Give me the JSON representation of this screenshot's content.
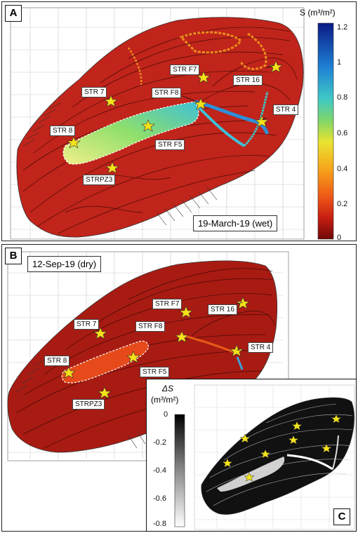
{
  "panels": {
    "A": {
      "tag": "A",
      "date": "19-March-19 (wet)",
      "colorbar": {
        "title": "S (m³/m²)",
        "ticks": [
          "1.2",
          "1",
          "0.8",
          "0.6",
          "0.4",
          "0.2",
          "0"
        ]
      }
    },
    "B": {
      "tag": "B",
      "date": "12-Sep-19 (dry)"
    },
    "C": {
      "tag": "C",
      "colorbar": {
        "title_line1": "ΔS",
        "title_line2": "(m³/m²)",
        "ticks": [
          "0",
          "-0.2",
          "-0.4",
          "-0.6",
          "-0.8"
        ]
      }
    }
  },
  "stations": {
    "str7": "STR 7",
    "strf7": "STR F7",
    "str16": "STR 16",
    "strf8": "STR F8",
    "str4": "STR 4",
    "str8": "STR 8",
    "strf5": "STR F5",
    "strpz3": "STRPZ3"
  },
  "colors": {
    "map_red": "#c0241a",
    "cb_top": "#0a1f8a",
    "cb_bottom": "#7a0a0a",
    "star": "#f4e21a"
  }
}
